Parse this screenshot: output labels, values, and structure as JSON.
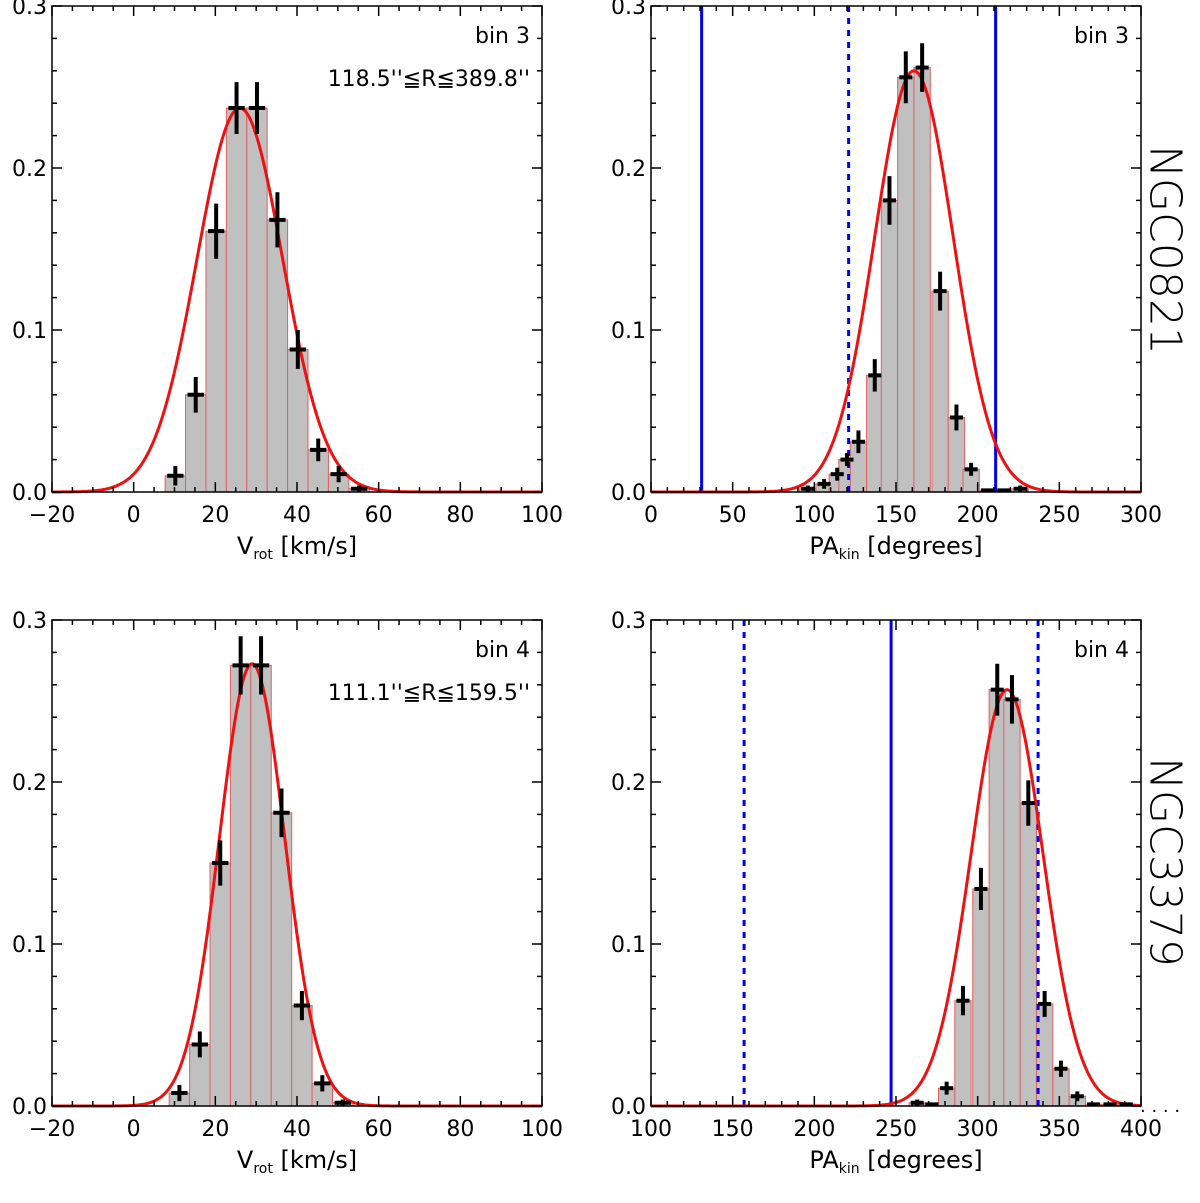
{
  "galaxy_labels": [
    "NGC0821",
    "NGC3379"
  ],
  "trailing_dots": ". . . .",
  "colors": {
    "hist_fill": "#c0c0c0",
    "hist_edge": "#e06060",
    "fit": "#ee1111",
    "marker": "#0000ee",
    "points": "#000000"
  },
  "chart_data": [
    {
      "type": "histogram",
      "galaxy": "NGC0821",
      "xlabel": "V",
      "xlabel_sub": "rot",
      "xlabel_units": "[km/s]",
      "xlim": [
        -20,
        100
      ],
      "ylim": [
        0,
        0.3
      ],
      "xticks": [
        -20,
        0,
        20,
        40,
        60,
        80,
        100
      ],
      "xtick_labels": [
        "−20",
        "0",
        "20",
        "40",
        "60",
        "80",
        "100"
      ],
      "yticks": [
        0,
        0.1,
        0.2,
        0.3
      ],
      "ytick_labels": [
        "0.0",
        "0.1",
        "0.2",
        "0.3"
      ],
      "x_minor_step": 5,
      "y_minor_step": 0.02,
      "annotations": [
        "bin 3",
        "118.5''≦R≦389.8''"
      ],
      "bins": {
        "centers": [
          10.2,
          15.2,
          20.2,
          25.2,
          30.2,
          35.2,
          40.2,
          45.2,
          50.2,
          55.2
        ],
        "values": [
          0.01,
          0.06,
          0.161,
          0.237,
          0.237,
          0.168,
          0.088,
          0.026,
          0.011,
          0.002
        ],
        "errors": [
          0.006,
          0.011,
          0.017,
          0.016,
          0.016,
          0.017,
          0.012,
          0.007,
          0.005,
          0.002
        ],
        "width": 5
      },
      "gaussian_fit": {
        "amplitude": 0.237,
        "mean": 26.0,
        "sigma": 10.5
      },
      "markers": []
    },
    {
      "type": "histogram",
      "galaxy": "NGC0821",
      "xlabel": "PA",
      "xlabel_sub": "kin",
      "xlabel_units": "[degrees]",
      "xlim": [
        0,
        300
      ],
      "ylim": [
        0,
        0.3
      ],
      "xticks": [
        0,
        50,
        100,
        150,
        200,
        250,
        300
      ],
      "xtick_labels": [
        "0",
        "50",
        "100",
        "150",
        "200",
        "250",
        "300"
      ],
      "yticks": [
        0,
        0.1,
        0.2,
        0.3
      ],
      "ytick_labels": [
        "0.0",
        "0.1",
        "0.2",
        "0.3"
      ],
      "x_minor_step": 10,
      "y_minor_step": 0.02,
      "annotations": [
        "bin 3"
      ],
      "bins": {
        "centers": [
          96,
          106,
          114,
          120,
          127,
          137,
          146,
          156,
          166,
          177,
          187,
          196,
          206,
          216,
          226
        ],
        "values": [
          0.002,
          0.005,
          0.011,
          0.02,
          0.031,
          0.072,
          0.18,
          0.256,
          0.262,
          0.124,
          0.046,
          0.014,
          0.001,
          0.001,
          0.002
        ],
        "errors": [
          0.002,
          0.003,
          0.004,
          0.004,
          0.007,
          0.01,
          0.015,
          0.016,
          0.015,
          0.012,
          0.008,
          0.004,
          0.001,
          0.001,
          0.002
        ],
        "width": 10
      },
      "gaussian_fit": {
        "amplitude": 0.26,
        "mean": 161.0,
        "sigma": 24.0
      },
      "markers": [
        {
          "x": 31,
          "style": "solid"
        },
        {
          "x": 121,
          "style": "dotted"
        },
        {
          "x": 211,
          "style": "solid"
        }
      ]
    },
    {
      "type": "histogram",
      "galaxy": "NGC3379",
      "xlabel": "V",
      "xlabel_sub": "rot",
      "xlabel_units": "[km/s]",
      "xlim": [
        -20,
        100
      ],
      "ylim": [
        0,
        0.3
      ],
      "xticks": [
        -20,
        0,
        20,
        40,
        60,
        80,
        100
      ],
      "xtick_labels": [
        "−20",
        "0",
        "20",
        "40",
        "60",
        "80",
        "100"
      ],
      "yticks": [
        0,
        0.1,
        0.2,
        0.3
      ],
      "ytick_labels": [
        "0.0",
        "0.1",
        "0.2",
        "0.3"
      ],
      "x_minor_step": 5,
      "y_minor_step": 0.02,
      "annotations": [
        "bin 4",
        "111.1''≦R≦159.5''"
      ],
      "bins": {
        "centers": [
          11.2,
          16.2,
          21.2,
          26.2,
          31.2,
          36.2,
          41.2,
          46.2,
          51.2
        ],
        "values": [
          0.008,
          0.038,
          0.15,
          0.272,
          0.272,
          0.181,
          0.062,
          0.014,
          0.002
        ],
        "errors": [
          0.005,
          0.008,
          0.014,
          0.018,
          0.018,
          0.015,
          0.009,
          0.005,
          0.002
        ],
        "width": 5
      },
      "gaussian_fit": {
        "amplitude": 0.273,
        "mean": 29.0,
        "sigma": 8.0
      },
      "markers": []
    },
    {
      "type": "histogram",
      "galaxy": "NGC3379",
      "xlabel": "PA",
      "xlabel_sub": "kin",
      "xlabel_units": "[degrees]",
      "xlim": [
        100,
        400
      ],
      "ylim": [
        0,
        0.3
      ],
      "xticks": [
        100,
        150,
        200,
        250,
        300,
        350,
        400
      ],
      "xtick_labels": [
        "100",
        "150",
        "200",
        "250",
        "300",
        "350",
        "400"
      ],
      "x_minor_step": 10,
      "y_minor_step": 0.02,
      "yticks": [
        0,
        0.1,
        0.2,
        0.3
      ],
      "ytick_labels": [
        "0.0",
        "0.1",
        "0.2",
        "0.3"
      ],
      "annotations": [
        "bin 4"
      ],
      "bins": {
        "centers": [
          263,
          272,
          281,
          291,
          302,
          312,
          321,
          331,
          341,
          351,
          361,
          371,
          381,
          391
        ],
        "values": [
          0.002,
          0.001,
          0.011,
          0.065,
          0.134,
          0.257,
          0.251,
          0.187,
          0.063,
          0.023,
          0.006,
          0.001,
          0.001,
          0.001
        ],
        "errors": [
          0.002,
          0.001,
          0.004,
          0.009,
          0.013,
          0.016,
          0.015,
          0.014,
          0.008,
          0.005,
          0.003,
          0.001,
          0.001,
          0.001
        ],
        "width": 10
      },
      "gaussian_fit": {
        "amplitude": 0.257,
        "mean": 318.0,
        "sigma": 22.0
      },
      "markers": [
        {
          "x": 157,
          "style": "dotted"
        },
        {
          "x": 247,
          "style": "solid"
        },
        {
          "x": 337,
          "style": "dotted"
        }
      ]
    }
  ]
}
